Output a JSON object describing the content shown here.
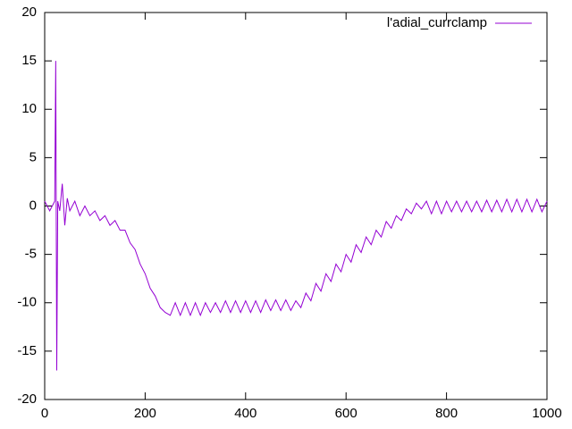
{
  "chart_data": {
    "type": "line",
    "x": [
      0,
      10,
      20,
      22,
      24,
      26,
      30,
      35,
      40,
      45,
      50,
      60,
      70,
      80,
      90,
      100,
      110,
      120,
      130,
      140,
      150,
      160,
      170,
      180,
      190,
      200,
      210,
      220,
      230,
      240,
      250,
      260,
      270,
      280,
      290,
      300,
      310,
      320,
      330,
      340,
      350,
      360,
      370,
      380,
      390,
      400,
      410,
      420,
      430,
      440,
      450,
      460,
      470,
      480,
      490,
      500,
      510,
      520,
      530,
      540,
      550,
      560,
      570,
      580,
      590,
      600,
      610,
      620,
      630,
      640,
      650,
      660,
      670,
      680,
      690,
      700,
      710,
      720,
      730,
      740,
      750,
      760,
      770,
      780,
      790,
      800,
      810,
      820,
      830,
      840,
      850,
      860,
      870,
      880,
      890,
      900,
      910,
      920,
      930,
      940,
      950,
      960,
      970,
      980,
      990,
      1000
    ],
    "series": [
      {
        "name": "l'adial_currclamp",
        "color": "#9400d3",
        "values": [
          0.5,
          -0.5,
          0.5,
          15,
          -17,
          0.5,
          -0.5,
          2.3,
          -2,
          0.8,
          -0.5,
          0.5,
          -1,
          0,
          -1,
          -0.5,
          -1.5,
          -1,
          -2,
          -1.5,
          -2.5,
          -2.5,
          -3.8,
          -4.5,
          -6,
          -7,
          -8.5,
          -9.3,
          -10.5,
          -11,
          -11.3,
          -10,
          -11.3,
          -10,
          -11.3,
          -10,
          -11.3,
          -10,
          -11,
          -10,
          -11,
          -9.8,
          -11,
          -9.8,
          -11,
          -9.8,
          -11,
          -9.8,
          -11,
          -9.7,
          -10.8,
          -9.7,
          -10.8,
          -9.7,
          -10.8,
          -9.8,
          -10.5,
          -9,
          -9.8,
          -8,
          -8.8,
          -7,
          -7.8,
          -6,
          -6.8,
          -5,
          -5.8,
          -4,
          -4.8,
          -3.2,
          -4,
          -2.5,
          -3.2,
          -1.6,
          -2.3,
          -1,
          -1.5,
          -0.3,
          -0.8,
          0.3,
          -0.3,
          0.5,
          -0.8,
          0.5,
          -0.8,
          0.5,
          -0.6,
          0.5,
          -0.6,
          0.5,
          -0.6,
          0.5,
          -0.6,
          0.6,
          -0.6,
          0.6,
          -0.6,
          0.7,
          -0.6,
          0.7,
          -0.6,
          0.7,
          -0.6,
          0.7,
          -0.6,
          0.5
        ]
      }
    ],
    "xlim": [
      0,
      1000
    ],
    "xticks": [
      0,
      200,
      400,
      600,
      800,
      1000
    ],
    "ylim": [
      -20,
      20
    ],
    "yticks": [
      -20,
      -15,
      -10,
      -5,
      0,
      5,
      10,
      15,
      20
    ],
    "grid": false,
    "legend": "top-right"
  }
}
